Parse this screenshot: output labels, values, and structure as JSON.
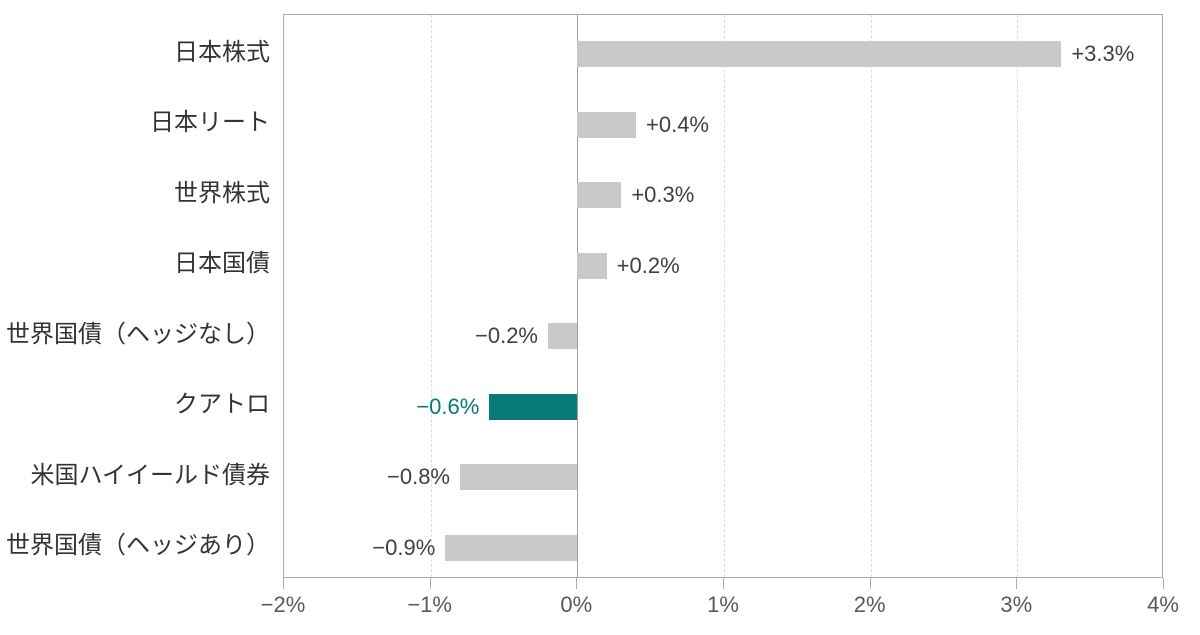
{
  "chart_data": {
    "type": "bar",
    "orientation": "horizontal",
    "title": "",
    "xlabel": "",
    "ylabel": "",
    "categories": [
      "日本株式",
      "日本リート",
      "世界株式",
      "日本国債",
      "世界国債（ヘッジなし）",
      "クアトロ",
      "米国ハイイールド債券",
      "世界国債（ヘッジあり）"
    ],
    "values": [
      3.3,
      0.4,
      0.3,
      0.2,
      -0.2,
      -0.6,
      -0.8,
      -0.9
    ],
    "value_labels": [
      "+3.3%",
      "+0.4%",
      "+0.3%",
      "+0.2%",
      "−0.2%",
      "−0.6%",
      "−0.8%",
      "−0.9%"
    ],
    "highlight_index": 5,
    "xlim": [
      -2,
      4
    ],
    "x_ticks": [
      -2,
      -1,
      0,
      1,
      2,
      3,
      4
    ],
    "x_tick_labels": [
      "−2%",
      "−1%",
      "0%",
      "1%",
      "2%",
      "3%",
      "4%"
    ],
    "grid": "vertical dashed gridlines at every 1% except 0%",
    "legend_position": "none",
    "colors": {
      "bar_default": "#c9c9c9",
      "bar_highlight": "#077a77",
      "value_label": "#404040",
      "value_label_highlight": "#077a77",
      "category_label": "#333333",
      "tick_label": "#595959",
      "plot_border": "#ababab",
      "gridline": "#dcdcdc",
      "zero_line": "#a0a0a0",
      "background": "#ffffff"
    }
  }
}
